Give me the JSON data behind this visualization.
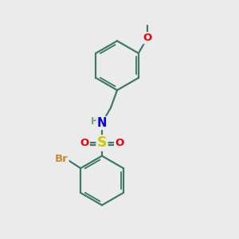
{
  "background_color": "#ebebeb",
  "bond_color": "#3d7a6a",
  "bond_width": 1.6,
  "atom_colors": {
    "N": "#0000ee",
    "O": "#ee0000",
    "S": "#cccc00",
    "Br": "#cc8833",
    "H": "#7a9a8a",
    "C": "#3d7a6a"
  },
  "font_size": 9.5,
  "figsize": [
    3.0,
    3.0
  ],
  "dpi": 100,
  "xlim": [
    0,
    10
  ],
  "ylim": [
    0,
    10
  ]
}
